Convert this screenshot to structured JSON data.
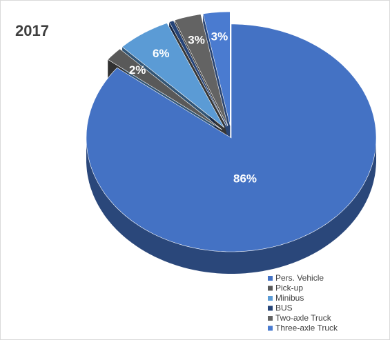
{
  "chart_data": {
    "type": "pie",
    "title": "2017",
    "categories": [
      "Pers. Vehicle",
      "Pick-up",
      "Minibus",
      "BUS",
      "Two-axle Truck",
      "Three-axle Truck"
    ],
    "values": [
      86,
      2,
      6,
      0.5,
      3,
      3
    ],
    "value_labels": [
      "86%",
      "2%",
      "6%",
      null,
      "3%",
      "3%"
    ],
    "colors": [
      "#4472c4",
      "#595959",
      "#5b9bd5",
      "#264478",
      "#636363",
      "#4a7bd0"
    ],
    "legend": "bottom-right"
  }
}
